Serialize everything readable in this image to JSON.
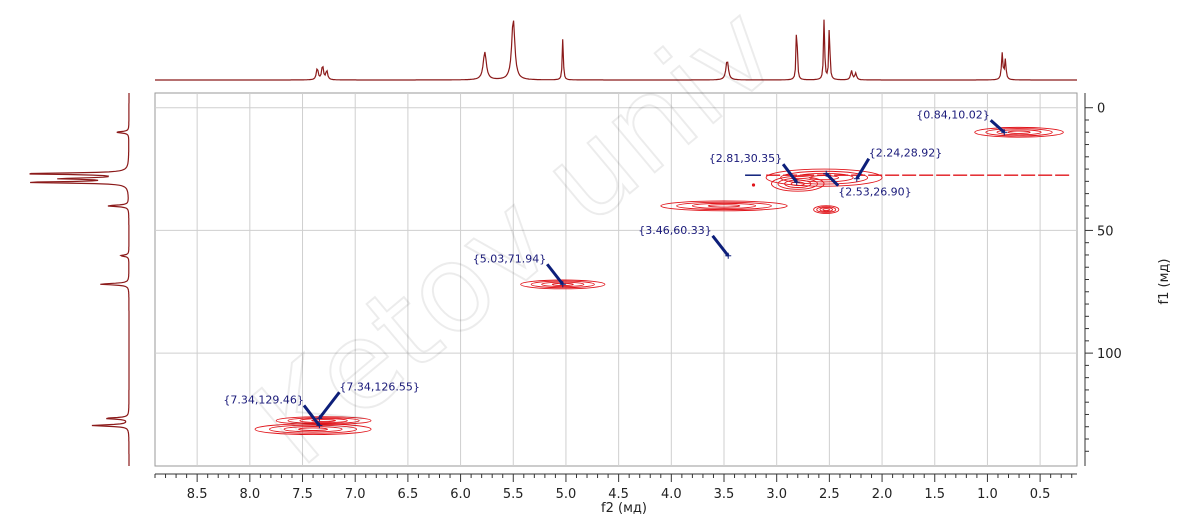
{
  "chart_data": {
    "type": "scatter",
    "subtype": "2D NMR HSQC",
    "xlabel": "f2 (мд)",
    "ylabel": "f1 (мд)",
    "xlim": [
      8.9,
      0.15
    ],
    "ylim": [
      -6,
      146
    ],
    "x_reversed": true,
    "grid": true,
    "x_ticks": [
      8.5,
      8.0,
      7.5,
      7.0,
      6.5,
      6.0,
      5.5,
      5.0,
      4.5,
      4.0,
      3.5,
      3.0,
      2.5,
      2.0,
      1.5,
      1.0,
      0.5
    ],
    "x_tick_labels": [
      "8.5",
      "8.0",
      "7.5",
      "7.0",
      "6.5",
      "6.0",
      "5.5",
      "5.0",
      "4.5",
      "4.0",
      "3.5",
      "3.0",
      "2.5",
      "2.0",
      "1.5",
      "1.0",
      "0.5"
    ],
    "y_ticks": [
      0,
      50,
      100
    ],
    "y_tick_labels": [
      "0",
      "50",
      "100"
    ],
    "peaks": [
      {
        "x": 0.84,
        "y": 10.02,
        "label": "{0.84,10.02}"
      },
      {
        "x": 2.81,
        "y": 30.35,
        "label": "{2.81,30.35}"
      },
      {
        "x": 2.24,
        "y": 28.92,
        "label": "{2.24,28.92}"
      },
      {
        "x": 2.53,
        "y": 26.9,
        "label": "{2.53,26.90}"
      },
      {
        "x": 3.46,
        "y": 60.33,
        "label": "{3.46,60.33}"
      },
      {
        "x": 5.03,
        "y": 71.94,
        "label": "{5.03,71.94}"
      },
      {
        "x": 7.34,
        "y": 129.46,
        "label": "{7.34,129.46}"
      },
      {
        "x": 7.34,
        "y": 126.55,
        "label": "{7.34,126.55}"
      }
    ],
    "contours": [
      {
        "x": 0.7,
        "y": 10.0,
        "rx": 0.42,
        "ry": 2.0
      },
      {
        "x": 2.55,
        "y": 28.5,
        "rx": 0.55,
        "ry": 3.5
      },
      {
        "x": 2.8,
        "y": 31.0,
        "rx": 0.25,
        "ry": 3.0
      },
      {
        "x": 3.5,
        "y": 40.0,
        "rx": 0.6,
        "ry": 2.0
      },
      {
        "x": 2.53,
        "y": 41.5,
        "rx": 0.12,
        "ry": 1.6
      },
      {
        "x": 5.03,
        "y": 72.0,
        "rx": 0.4,
        "ry": 1.8
      },
      {
        "x": 7.3,
        "y": 127.5,
        "rx": 0.45,
        "ry": 1.6
      },
      {
        "x": 7.4,
        "y": 131.0,
        "rx": 0.55,
        "ry": 2.2
      }
    ],
    "f2_projection_peaks": [
      {
        "x": 7.36,
        "h": 0.18,
        "w": 0.01
      },
      {
        "x": 7.31,
        "h": 0.22,
        "w": 0.01
      },
      {
        "x": 7.27,
        "h": 0.14,
        "w": 0.01
      },
      {
        "x": 5.77,
        "h": 0.42,
        "w": 0.018
      },
      {
        "x": 5.5,
        "h": 0.92,
        "w": 0.018
      },
      {
        "x": 5.03,
        "h": 0.62,
        "w": 0.006
      },
      {
        "x": 3.47,
        "h": 0.3,
        "w": 0.014
      },
      {
        "x": 2.81,
        "h": 0.97,
        "w": 0.006
      },
      {
        "x": 2.55,
        "h": 0.95,
        "w": 0.006
      },
      {
        "x": 2.5,
        "h": 0.9,
        "w": 0.006
      },
      {
        "x": 2.29,
        "h": 0.14,
        "w": 0.01
      },
      {
        "x": 2.25,
        "h": 0.1,
        "w": 0.01
      },
      {
        "x": 0.86,
        "h": 0.4,
        "w": 0.008
      },
      {
        "x": 0.83,
        "h": 0.3,
        "w": 0.008
      }
    ],
    "f1_projection_peaks": [
      {
        "y": 10.0,
        "h": 0.12
      },
      {
        "y": 26.9,
        "h": 1.0
      },
      {
        "y": 28.9,
        "h": 0.62
      },
      {
        "y": 30.4,
        "h": 0.95
      },
      {
        "y": 40.0,
        "h": 0.2
      },
      {
        "y": 60.3,
        "h": 0.08
      },
      {
        "y": 71.9,
        "h": 0.28
      },
      {
        "y": 126.6,
        "h": 0.22
      },
      {
        "y": 129.5,
        "h": 0.35
      }
    ],
    "colors": {
      "contour": "#e0151b",
      "projection": "#8b1a1a",
      "label": "#1a1a7a",
      "arrow": "#0d1f7a",
      "grid": "#cfcfcf"
    }
  },
  "watermark": "Ketov univ"
}
